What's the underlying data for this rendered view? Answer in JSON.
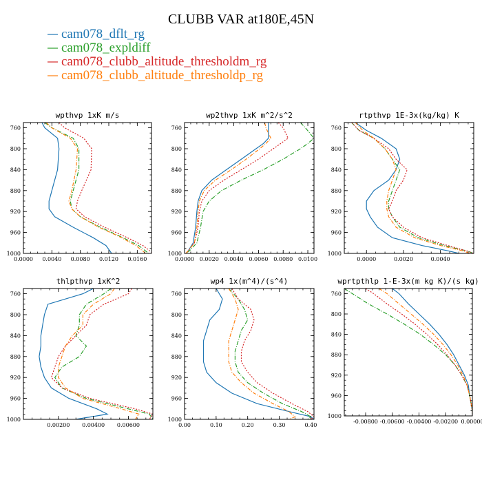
{
  "title": "CLUBB VAR at180E,45N",
  "colors": {
    "cam078_dflt_rg": "#1f77b4",
    "cam078_expldiff": "#2ca02c",
    "cam078_clubb_altitude_thresholdm_rg": "#d62728",
    "cam078_clubb_altitude_thresholdp_rg": "#ff7f0e"
  },
  "legend": [
    {
      "name": "cam078_dflt_rg",
      "color": "#1f77b4"
    },
    {
      "name": "cam078_expldiff",
      "color": "#2ca02c"
    },
    {
      "name": "cam078_clubb_altitude_thresholdm_rg",
      "color": "#d62728"
    },
    {
      "name": "cam078_clubb_altitude_thresholdp_rg",
      "color": "#ff7f0e"
    }
  ],
  "chart_data": [
    {
      "type": "line",
      "title": "wpthvp  1xK m/s",
      "xlim": [
        0,
        0.018
      ],
      "ylim": [
        1000,
        750
      ],
      "xticks": [
        0,
        0.004,
        0.008,
        0.012,
        0.016
      ],
      "xtick_labels": [
        "0.0000",
        "0.0040",
        "0.0080",
        "0.0120",
        "0.0160"
      ],
      "yticks": [
        760,
        800,
        840,
        880,
        920,
        960,
        1000
      ],
      "ytick_labels": [
        "760",
        "800",
        "840",
        "880",
        "920",
        "960",
        "1000"
      ],
      "y": [
        750,
        760,
        780,
        800,
        840,
        880,
        900,
        915,
        930,
        950,
        970,
        985,
        1000
      ],
      "series": [
        {
          "name": "cam078_dflt_rg",
          "x": [
            0.0026,
            0.003,
            0.0048,
            0.005,
            0.0048,
            0.004,
            0.0036,
            0.0036,
            0.0044,
            0.007,
            0.0098,
            0.0116,
            0.0124
          ]
        },
        {
          "name": "cam078_expldiff",
          "x": [
            0.003,
            0.004,
            0.007,
            0.0078,
            0.0078,
            0.007,
            0.0066,
            0.0068,
            0.008,
            0.0108,
            0.014,
            0.0162,
            0.0176
          ]
        },
        {
          "name": "cam078_clubb_altitude_thresholdm_rg",
          "x": [
            0.005,
            0.0058,
            0.0085,
            0.0096,
            0.0095,
            0.0082,
            0.0076,
            0.0074,
            0.0086,
            0.0114,
            0.0146,
            0.0168,
            0.0182
          ]
        },
        {
          "name": "cam078_clubb_altitude_thresholdp_rg",
          "x": [
            0.0032,
            0.004,
            0.0066,
            0.0076,
            0.0074,
            0.0068,
            0.0064,
            0.0068,
            0.008,
            0.0106,
            0.0138,
            0.0158,
            0.0172
          ]
        }
      ]
    },
    {
      "type": "line",
      "title": "wp2thvp  1xK m^2/s^2",
      "xlim": [
        0,
        0.0105
      ],
      "ylim": [
        1000,
        750
      ],
      "xticks": [
        0,
        0.002,
        0.004,
        0.006,
        0.008,
        0.01
      ],
      "xtick_labels": [
        "0.0000",
        "0.0020",
        "0.0040",
        "0.0060",
        "0.0080",
        "0.0100"
      ],
      "yticks": [
        760,
        800,
        840,
        880,
        920,
        960,
        1000
      ],
      "ytick_labels": [
        "760",
        "800",
        "840",
        "880",
        "920",
        "960",
        "1000"
      ],
      "y": [
        750,
        760,
        780,
        790,
        800,
        820,
        840,
        860,
        880,
        900,
        920,
        950,
        980,
        995,
        1000
      ],
      "series": [
        {
          "name": "cam078_dflt_rg",
          "x": [
            0.0068,
            0.0068,
            0.0068,
            0.0064,
            0.0058,
            0.0046,
            0.0034,
            0.0022,
            0.0014,
            0.0011,
            0.001,
            0.0009,
            0.0007,
            0.0003,
            0.0001
          ]
        },
        {
          "name": "cam078_expldiff",
          "x": [
            0.0094,
            0.0098,
            0.0105,
            0.01,
            0.0094,
            0.008,
            0.0064,
            0.0046,
            0.003,
            0.002,
            0.0015,
            0.0013,
            0.001,
            0.0004,
            0.0001
          ]
        },
        {
          "name": "cam078_clubb_altitude_thresholdm_rg",
          "x": [
            0.0076,
            0.008,
            0.0084,
            0.0078,
            0.0072,
            0.006,
            0.0046,
            0.0032,
            0.002,
            0.0014,
            0.0012,
            0.0011,
            0.0008,
            0.0003,
            0.0001
          ]
        },
        {
          "name": "cam078_clubb_altitude_thresholdp_rg",
          "x": [
            0.0065,
            0.0066,
            0.007,
            0.0066,
            0.0061,
            0.005,
            0.0038,
            0.0025,
            0.0016,
            0.0012,
            0.0011,
            0.001,
            0.0008,
            0.0003,
            0.0001
          ]
        }
      ]
    },
    {
      "type": "line",
      "title": "rtpthvp  1E-3x(kg/kg) K",
      "xlim": [
        -0.0012,
        0.0058
      ],
      "ylim": [
        1000,
        750
      ],
      "xticks": [
        0,
        0.002,
        0.004
      ],
      "xtick_labels": [
        "0.0000",
        "0.0020",
        "0.0040"
      ],
      "yticks": [
        760,
        800,
        840,
        880,
        920,
        960,
        1000
      ],
      "ytick_labels": [
        "760",
        "800",
        "840",
        "880",
        "920",
        "960",
        "1000"
      ],
      "y": [
        750,
        765,
        780,
        800,
        820,
        840,
        860,
        880,
        900,
        915,
        930,
        950,
        970,
        985,
        995,
        1000
      ],
      "series": [
        {
          "name": "cam078_dflt_rg",
          "x": [
            -0.0006,
            0.0,
            0.0008,
            0.0016,
            0.0018,
            0.0016,
            0.0012,
            0.0004,
            0.0,
            0.0,
            0.0002,
            0.0006,
            0.0014,
            0.003,
            0.0044,
            0.005
          ]
        },
        {
          "name": "cam078_expldiff",
          "x": [
            -0.0008,
            -0.0004,
            0.0004,
            0.001,
            0.0014,
            0.0018,
            0.0016,
            0.0014,
            0.0012,
            0.0012,
            0.0014,
            0.0018,
            0.0028,
            0.0042,
            0.0054,
            0.0058
          ]
        },
        {
          "name": "cam078_clubb_altitude_thresholdm_rg",
          "x": [
            -0.0008,
            -0.0004,
            0.0004,
            0.0012,
            0.0016,
            0.0022,
            0.002,
            0.0016,
            0.0014,
            0.0012,
            0.0014,
            0.002,
            0.003,
            0.0044,
            0.0054,
            0.0058
          ]
        },
        {
          "name": "cam078_clubb_altitude_thresholdp_rg",
          "x": [
            -0.0006,
            -0.0002,
            0.0004,
            0.001,
            0.0014,
            0.0016,
            0.0014,
            0.0012,
            0.0011,
            0.0011,
            0.0012,
            0.0016,
            0.0026,
            0.004,
            0.0052,
            0.0056
          ]
        }
      ]
    },
    {
      "type": "line",
      "title": "thlpthvp  1xK^2",
      "xlim": [
        0,
        0.0074
      ],
      "ylim": [
        1000,
        750
      ],
      "xticks": [
        0.002,
        0.004,
        0.006
      ],
      "xtick_labels": [
        "0.00200",
        "0.00400",
        "0.00600"
      ],
      "yticks": [
        760,
        800,
        840,
        880,
        920,
        960,
        1000
      ],
      "ytick_labels": [
        "760",
        "800",
        "840",
        "880",
        "920",
        "960",
        "1000"
      ],
      "y": [
        750,
        760,
        780,
        800,
        820,
        840,
        860,
        880,
        900,
        920,
        940,
        960,
        980,
        990,
        1000
      ],
      "series": [
        {
          "name": "cam078_dflt_rg",
          "x": [
            0.004,
            0.0034,
            0.0014,
            0.0012,
            0.0011,
            0.001,
            0.001,
            0.0009,
            0.001,
            0.0012,
            0.0016,
            0.0026,
            0.0042,
            0.0048,
            0.003
          ]
        },
        {
          "name": "cam078_expldiff",
          "x": [
            0.005,
            0.0046,
            0.0036,
            0.0032,
            0.0032,
            0.003,
            0.0036,
            0.0032,
            0.0022,
            0.0018,
            0.0022,
            0.0036,
            0.006,
            0.0072,
            0.0074
          ]
        },
        {
          "name": "cam078_clubb_altitude_thresholdm_rg",
          "x": [
            0.0062,
            0.006,
            0.0046,
            0.0038,
            0.0036,
            0.003,
            0.0024,
            0.002,
            0.0018,
            0.0016,
            0.0022,
            0.0038,
            0.0064,
            0.0074,
            0.0072
          ]
        },
        {
          "name": "cam078_clubb_altitude_thresholdp_rg",
          "x": [
            0.0052,
            0.005,
            0.004,
            0.0034,
            0.0034,
            0.0028,
            0.0024,
            0.0022,
            0.002,
            0.002,
            0.0024,
            0.0034,
            0.0056,
            0.0066,
            0.0064
          ]
        }
      ]
    },
    {
      "type": "line",
      "title": "wp4  1x(m^4)/(s^4)",
      "xlim": [
        0,
        0.41
      ],
      "ylim": [
        1000,
        750
      ],
      "xticks": [
        0,
        0.1,
        0.2,
        0.3,
        0.4
      ],
      "xtick_labels": [
        "0.00",
        "0.10",
        "0.20",
        "0.30",
        "0.40"
      ],
      "yticks": [
        760,
        800,
        840,
        880,
        920,
        960,
        1000
      ],
      "ytick_labels": [
        "760",
        "800",
        "840",
        "880",
        "920",
        "960",
        "1000"
      ],
      "y": [
        750,
        770,
        790,
        810,
        830,
        850,
        870,
        890,
        910,
        930,
        950,
        970,
        985,
        995,
        1000
      ],
      "series": [
        {
          "name": "cam078_dflt_rg",
          "x": [
            0.1,
            0.12,
            0.11,
            0.08,
            0.07,
            0.06,
            0.06,
            0.06,
            0.07,
            0.1,
            0.15,
            0.23,
            0.33,
            0.4,
            0.41
          ]
        },
        {
          "name": "cam078_expldiff",
          "x": [
            0.14,
            0.17,
            0.19,
            0.2,
            0.18,
            0.17,
            0.16,
            0.16,
            0.17,
            0.2,
            0.25,
            0.31,
            0.37,
            0.4,
            0.39
          ]
        },
        {
          "name": "cam078_clubb_altitude_thresholdm_rg",
          "x": [
            0.15,
            0.17,
            0.21,
            0.22,
            0.21,
            0.19,
            0.18,
            0.18,
            0.2,
            0.23,
            0.28,
            0.34,
            0.39,
            0.41,
            0.4
          ]
        },
        {
          "name": "cam078_clubb_altitude_thresholdp_rg",
          "x": [
            0.14,
            0.16,
            0.17,
            0.16,
            0.15,
            0.14,
            0.14,
            0.14,
            0.15,
            0.18,
            0.22,
            0.28,
            0.33,
            0.35,
            0.33
          ]
        }
      ]
    },
    {
      "type": "line",
      "title": "wprtpthlp  1-E-3x(m kg K)/(s kg)",
      "xlim": [
        -0.0096,
        0.0
      ],
      "ylim": [
        1000,
        750
      ],
      "xticks": [
        -0.008,
        -0.006,
        -0.004,
        -0.002,
        0
      ],
      "xtick_labels": [
        "-0.00800",
        "-0.00600",
        "-0.00400",
        "-0.00200",
        "0.00000"
      ],
      "yticks": [
        760,
        800,
        840,
        880,
        920,
        960,
        1000
      ],
      "ytick_labels": [
        "760",
        "800",
        "840",
        "880",
        "920",
        "960",
        "1000"
      ],
      "y": [
        750,
        760,
        780,
        800,
        820,
        840,
        860,
        880,
        900,
        920,
        940,
        960,
        975,
        990,
        1000
      ],
      "series": [
        {
          "name": "cam078_dflt_rg",
          "x": [
            -0.006,
            -0.0055,
            -0.0048,
            -0.004,
            -0.0032,
            -0.0025,
            -0.0019,
            -0.0014,
            -0.001,
            -0.0006,
            -0.0003,
            -0.0002,
            -0.0001,
            0.0,
            0.0
          ]
        },
        {
          "name": "cam078_expldiff",
          "x": [
            -0.0096,
            -0.009,
            -0.0078,
            -0.0064,
            -0.0051,
            -0.0039,
            -0.0029,
            -0.002,
            -0.0013,
            -0.0008,
            -0.0004,
            -0.0002,
            -0.0001,
            0.0,
            0.0
          ]
        },
        {
          "name": "cam078_clubb_altitude_thresholdm_rg",
          "x": [
            -0.008,
            -0.0074,
            -0.0064,
            -0.0053,
            -0.0043,
            -0.0034,
            -0.0026,
            -0.0019,
            -0.0013,
            -0.0008,
            -0.0004,
            -0.0002,
            -0.0001,
            0.0,
            0.0
          ]
        },
        {
          "name": "cam078_clubb_altitude_thresholdp_rg",
          "x": [
            -0.007,
            -0.0064,
            -0.0055,
            -0.0046,
            -0.0037,
            -0.0029,
            -0.0022,
            -0.0016,
            -0.0011,
            -0.0007,
            -0.0004,
            -0.0002,
            -0.0001,
            0.0,
            0.0
          ]
        }
      ]
    }
  ]
}
